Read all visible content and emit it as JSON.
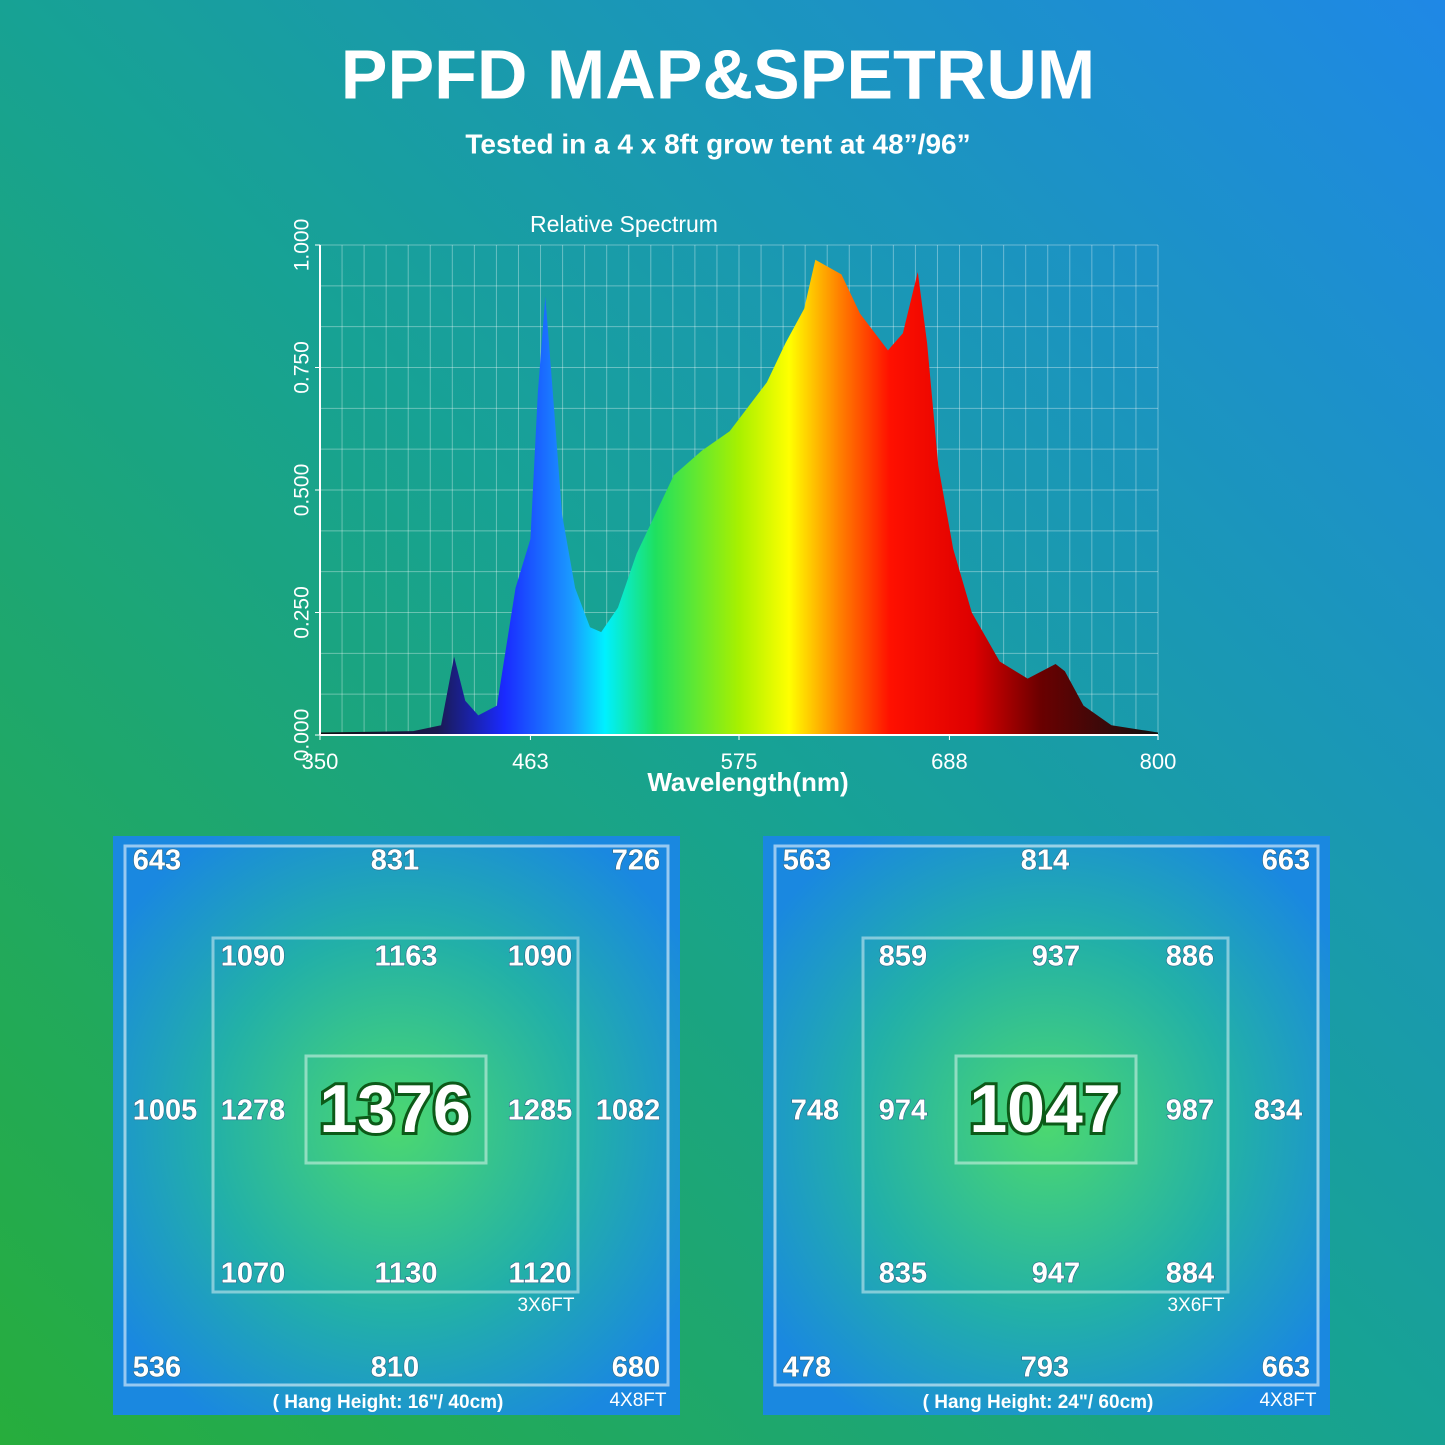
{
  "header": {
    "title": "PPFD MAP&SPETRUM",
    "subtitle": "Tested in a 4 x 8ft grow tent at 48”/96”"
  },
  "chart_data": {
    "type": "area",
    "title": "Relative Spectrum",
    "xlabel": "Wavelength(nm)",
    "x": [
      350,
      400,
      415,
      422,
      428,
      435,
      445,
      455,
      463,
      467,
      471,
      475,
      480,
      487,
      495,
      501,
      510,
      520,
      530,
      540,
      555,
      570,
      590,
      600,
      610,
      616,
      630,
      640,
      655,
      663,
      671,
      676,
      682,
      690,
      700,
      715,
      730,
      745,
      750,
      760,
      775,
      800
    ],
    "values": [
      0.005,
      0.008,
      0.02,
      0.16,
      0.07,
      0.04,
      0.06,
      0.3,
      0.4,
      0.7,
      0.895,
      0.7,
      0.45,
      0.3,
      0.22,
      0.21,
      0.26,
      0.37,
      0.45,
      0.53,
      0.58,
      0.62,
      0.72,
      0.8,
      0.87,
      0.97,
      0.94,
      0.86,
      0.785,
      0.82,
      0.945,
      0.8,
      0.55,
      0.38,
      0.25,
      0.15,
      0.115,
      0.145,
      0.13,
      0.06,
      0.02,
      0.005
    ],
    "xlim": [
      350,
      800
    ],
    "xticks": [
      350,
      463,
      575,
      688,
      800
    ],
    "ylim": [
      0,
      1
    ],
    "yticks": [
      {
        "value": 0,
        "label": "0.000"
      },
      {
        "value": 0.25,
        "label": "0.250"
      },
      {
        "value": 0.5,
        "label": "0.500"
      },
      {
        "value": 0.75,
        "label": "0.750"
      },
      {
        "value": 1,
        "label": "1.000"
      }
    ],
    "grid": true
  },
  "maps": [
    {
      "rows": [
        [
          "643",
          "831",
          "726"
        ],
        [
          "1090",
          "1163",
          "1090"
        ],
        [
          "1005",
          "1278",
          "1376",
          "1285",
          "1082"
        ],
        [
          "1070",
          "1130",
          "1120"
        ],
        [
          "536",
          "810",
          "680"
        ]
      ],
      "inner_label": "3X6FT",
      "outer_label": "4X8FT",
      "caption": "( Hang Height: 16\"/ 40cm)"
    },
    {
      "rows": [
        [
          "563",
          "814",
          "663"
        ],
        [
          "859",
          "937",
          "886"
        ],
        [
          "748",
          "974",
          "1047",
          "987",
          "834"
        ],
        [
          "835",
          "947",
          "884"
        ],
        [
          "478",
          "793",
          "663"
        ]
      ],
      "inner_label": "3X6FT",
      "outer_label": "4X8FT",
      "caption": "( Hang Height: 24\"/ 60cm)"
    }
  ]
}
